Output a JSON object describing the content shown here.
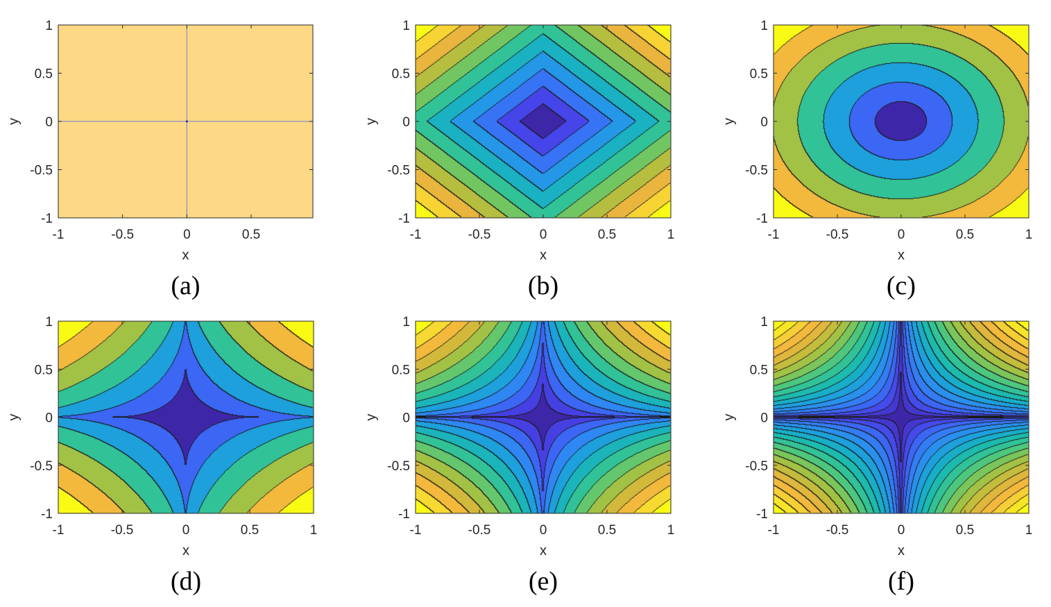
{
  "figure": {
    "panels": [
      {
        "caption": "(a)",
        "xlabel": "x",
        "ylabel": "y",
        "xticks": [
          "-1",
          "-0.5",
          "0",
          "0.5"
        ],
        "yticks": [
          "1",
          "0.5",
          "0",
          "-0.5",
          "-1"
        ]
      },
      {
        "caption": "(b)",
        "xlabel": "x",
        "ylabel": "y",
        "xticks": [
          "-1",
          "-0.5",
          "0",
          "0.5",
          "1"
        ],
        "yticks": [
          "1",
          "0.5",
          "0",
          "-0.5",
          "-1"
        ]
      },
      {
        "caption": "(c)",
        "xlabel": "x",
        "ylabel": "y",
        "xticks": [
          "-1",
          "-0.5",
          "0",
          "0.5",
          "1"
        ],
        "yticks": [
          "1",
          "0.5",
          "0",
          "-0.5",
          "-1"
        ]
      },
      {
        "caption": "(d)",
        "xlabel": "x",
        "ylabel": "y",
        "xticks": [
          "-1",
          "-0.5",
          "0",
          "0.5",
          "1"
        ],
        "yticks": [
          "1",
          "0.5",
          "0",
          "-0.5",
          "-1"
        ]
      },
      {
        "caption": "(e)",
        "xlabel": "x",
        "ylabel": "y",
        "xticks": [
          "-1",
          "-0.5",
          "0",
          "0.5",
          "1"
        ],
        "yticks": [
          "1",
          "0.5",
          "0",
          "-0.5",
          "-1"
        ]
      },
      {
        "caption": "(f)",
        "xlabel": "x",
        "ylabel": "y",
        "xticks": [
          "-1",
          "-0.5",
          "0",
          "0.5",
          "1"
        ],
        "yticks": [
          "1",
          "0.5",
          "0",
          "-0.5",
          "-1"
        ]
      }
    ]
  },
  "chart_data": [
    {
      "type": "heatmap",
      "contour": "filled",
      "panel": "(a)",
      "xlabel": "x",
      "ylabel": "y",
      "xlim": [
        -1,
        1
      ],
      "ylim": [
        -1,
        1
      ],
      "p": 0,
      "levels": 1,
      "xticks": [
        -1,
        -0.5,
        0,
        0.5
      ],
      "yticks": [
        -1,
        -0.5,
        0,
        0.5,
        1
      ],
      "pattern": "uniform level with axis-aligned cross at x=0 and y=0"
    },
    {
      "type": "heatmap",
      "contour": "filled",
      "panel": "(b)",
      "xlabel": "x",
      "ylabel": "y",
      "xlim": [
        -1,
        1
      ],
      "ylim": [
        -1,
        1
      ],
      "p": 1,
      "levels": 11,
      "xticks": [
        -1,
        -0.5,
        0,
        0.5,
        1
      ],
      "yticks": [
        -1,
        -0.5,
        0,
        0.5,
        1
      ],
      "pattern": "diamond-shaped contours centered at origin"
    },
    {
      "type": "heatmap",
      "contour": "filled",
      "panel": "(c)",
      "xlabel": "x",
      "ylabel": "y",
      "xlim": [
        -1,
        1
      ],
      "ylim": [
        -1,
        1
      ],
      "p": 2,
      "levels": 7,
      "xticks": [
        -1,
        -0.5,
        0,
        0.5,
        1
      ],
      "yticks": [
        -1,
        -0.5,
        0,
        0.5,
        1
      ],
      "pattern": "circular contours centered at origin"
    },
    {
      "type": "heatmap",
      "contour": "filled",
      "panel": "(d)",
      "xlabel": "x",
      "ylabel": "y",
      "xlim": [
        -1,
        1
      ],
      "ylim": [
        -1,
        1
      ],
      "p": 0.5,
      "levels": 7,
      "xticks": [
        -1,
        -0.5,
        0,
        0.5,
        1
      ],
      "yticks": [
        -1,
        -0.5,
        0,
        0.5,
        1
      ],
      "pattern": "astroid (star) contours centered at origin"
    },
    {
      "type": "heatmap",
      "contour": "filled",
      "panel": "(e)",
      "xlabel": "x",
      "ylabel": "y",
      "xlim": [
        -1,
        1
      ],
      "ylim": [
        -1,
        1
      ],
      "p": 0.35,
      "levels": 13,
      "xticks": [
        -1,
        -0.5,
        0,
        0.5,
        1
      ],
      "yticks": [
        -1,
        -0.5,
        0,
        0.5,
        1
      ],
      "pattern": "sharper star contours centered at origin"
    },
    {
      "type": "heatmap",
      "contour": "filled",
      "panel": "(f)",
      "xlabel": "x",
      "ylabel": "y",
      "xlim": [
        -1,
        1
      ],
      "ylim": [
        -1,
        1
      ],
      "p": 0.12,
      "levels": 19,
      "xticks": [
        -1,
        -0.5,
        0,
        0.5,
        1
      ],
      "yticks": [
        -1,
        -0.5,
        0,
        0.5,
        1
      ],
      "pattern": "cross-shaped contours along x=0 and y=0"
    }
  ],
  "colormap": [
    "#3e26a8",
    "#4741e7",
    "#3a6df6",
    "#2a8ff0",
    "#17a9d2",
    "#1ebca9",
    "#46c784",
    "#8fc64c",
    "#c7bb3b",
    "#f2b33f",
    "#f7d733",
    "#f9fb15"
  ],
  "uniform_fill": "#fdd985",
  "cross_color": "#8a8fc8",
  "contour_line_color": "#1a1a1a",
  "axes_color": "#262626"
}
